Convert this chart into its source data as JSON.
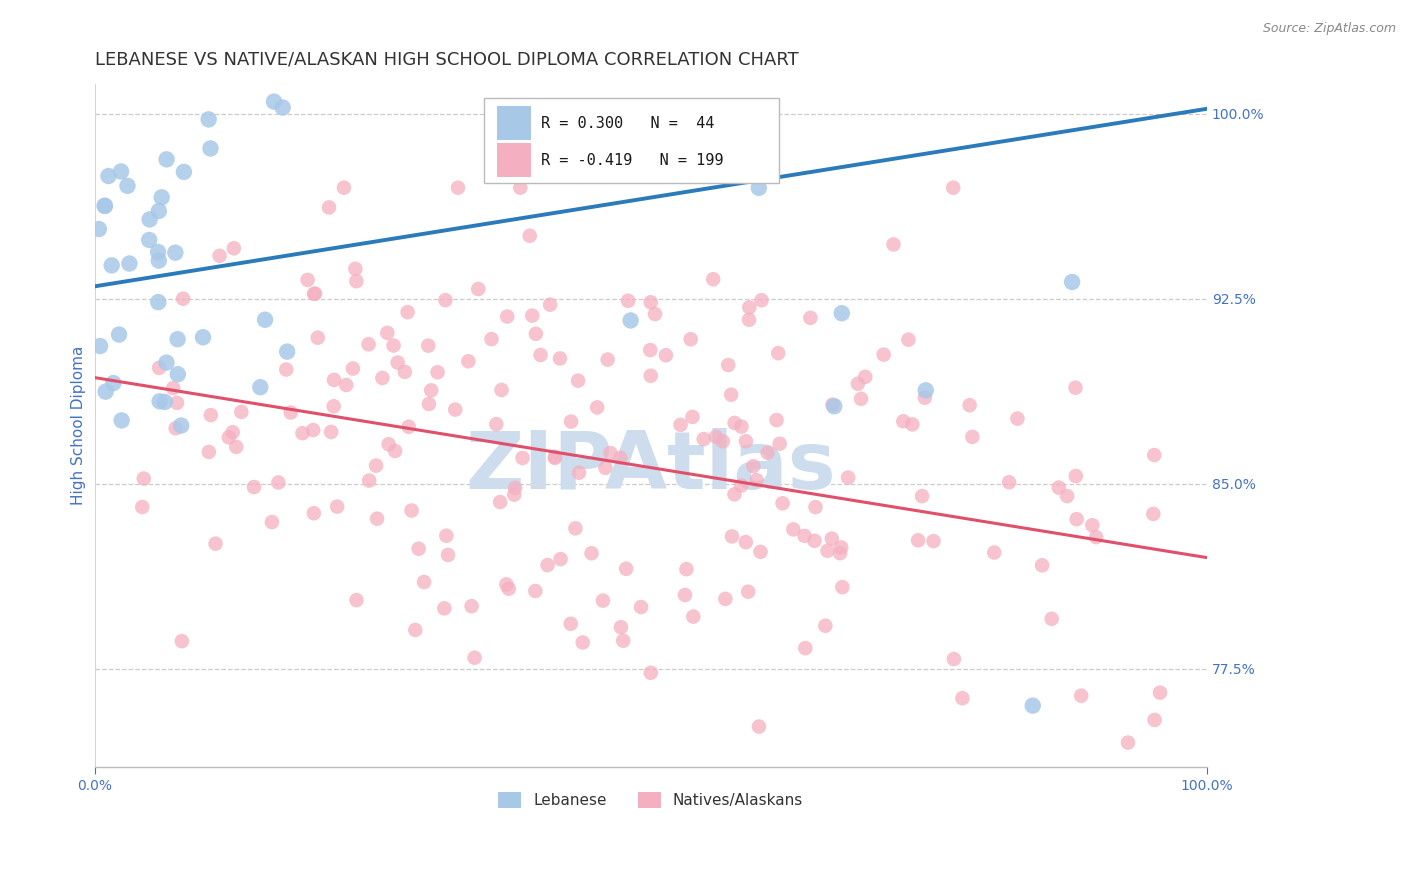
{
  "title": "LEBANESE VS NATIVE/ALASKAN HIGH SCHOOL DIPLOMA CORRELATION CHART",
  "source": "Source: ZipAtlas.com",
  "ylabel": "High School Diploma",
  "xlim": [
    0.0,
    1.0
  ],
  "ylim": [
    0.735,
    1.012
  ],
  "yticks": [
    0.775,
    0.85,
    0.925,
    1.0
  ],
  "ytick_labels": [
    "77.5%",
    "85.0%",
    "92.5%",
    "100.0%"
  ],
  "legend_r1": "R = 0.300",
  "legend_n1": "N =  44",
  "legend_r2": "R = -0.419",
  "legend_n2": "N = 199",
  "blue_color": "#a8c8e8",
  "pink_color": "#f4afc0",
  "blue_line_color": "#2b7bba",
  "pink_line_color": "#e0506a",
  "watermark_color": "#cddded",
  "background_color": "#ffffff",
  "grid_color": "#cccccc",
  "title_color": "#333333",
  "axis_label_color": "#4472c4",
  "tick_color": "#4472c4",
  "seed": 12,
  "blue_N": 44,
  "pink_N": 199,
  "blue_line_x0": 0.0,
  "blue_line_y0": 0.93,
  "blue_line_x1": 1.0,
  "blue_line_y1": 1.002,
  "pink_line_x0": 0.0,
  "pink_line_y0": 0.893,
  "pink_line_x1": 1.0,
  "pink_line_y1": 0.82
}
